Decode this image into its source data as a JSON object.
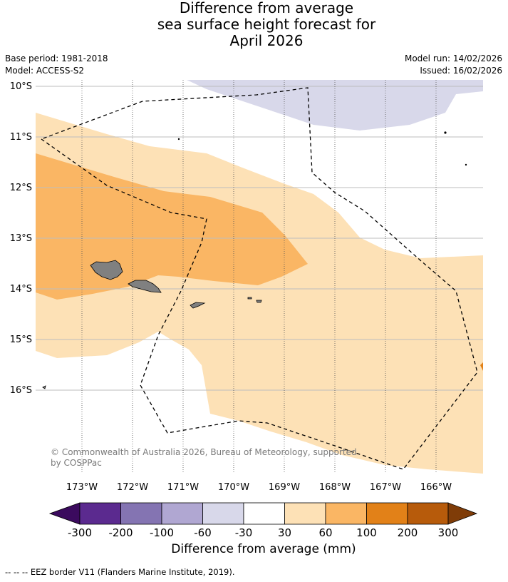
{
  "title": {
    "line1": "Difference from average",
    "line2": "sea surface height forecast for",
    "line3": "April 2026"
  },
  "meta": {
    "base_period": "Base period: 1981-2018",
    "model": "Model: ACCESS-S2",
    "model_run": "Model run: 14/02/2026",
    "issued": "Issued: 16/02/2026"
  },
  "map": {
    "lat_labels": [
      "10°S",
      "11°S",
      "12°S",
      "13°S",
      "14°S",
      "15°S",
      "16°S"
    ],
    "lon_labels": [
      "173°W",
      "172°W",
      "171°W",
      "170°W",
      "169°W",
      "168°W",
      "167°W",
      "166°W"
    ],
    "copyright": "© Commonwealth of Australia 2026, Bureau of Meteorology, supported",
    "copyright2": "by COSPPac",
    "colors": {
      "land": "#808080",
      "c_minus60_minus30": "#d8d8ea",
      "c_30_60": "#fde1b6",
      "c_60_100": "#fab664",
      "c_100_200": "#e28118",
      "grid": "#bdbdbd"
    }
  },
  "colorbar": {
    "ticks": [
      "-300",
      "-200",
      "-100",
      "-60",
      "-30",
      "30",
      "60",
      "100",
      "200",
      "300"
    ],
    "label": "Difference from average (mm)",
    "colors": [
      "#3b0a5e",
      "#5b2a8f",
      "#8474b2",
      "#b0a7d2",
      "#d8d8ea",
      "#ffffff",
      "#fde1b6",
      "#fab664",
      "#e28118",
      "#b75b0b",
      "#7f3c08"
    ]
  },
  "footnote": "-- -- -- EEZ border V11 (Flanders Marine Institute, 2019)."
}
